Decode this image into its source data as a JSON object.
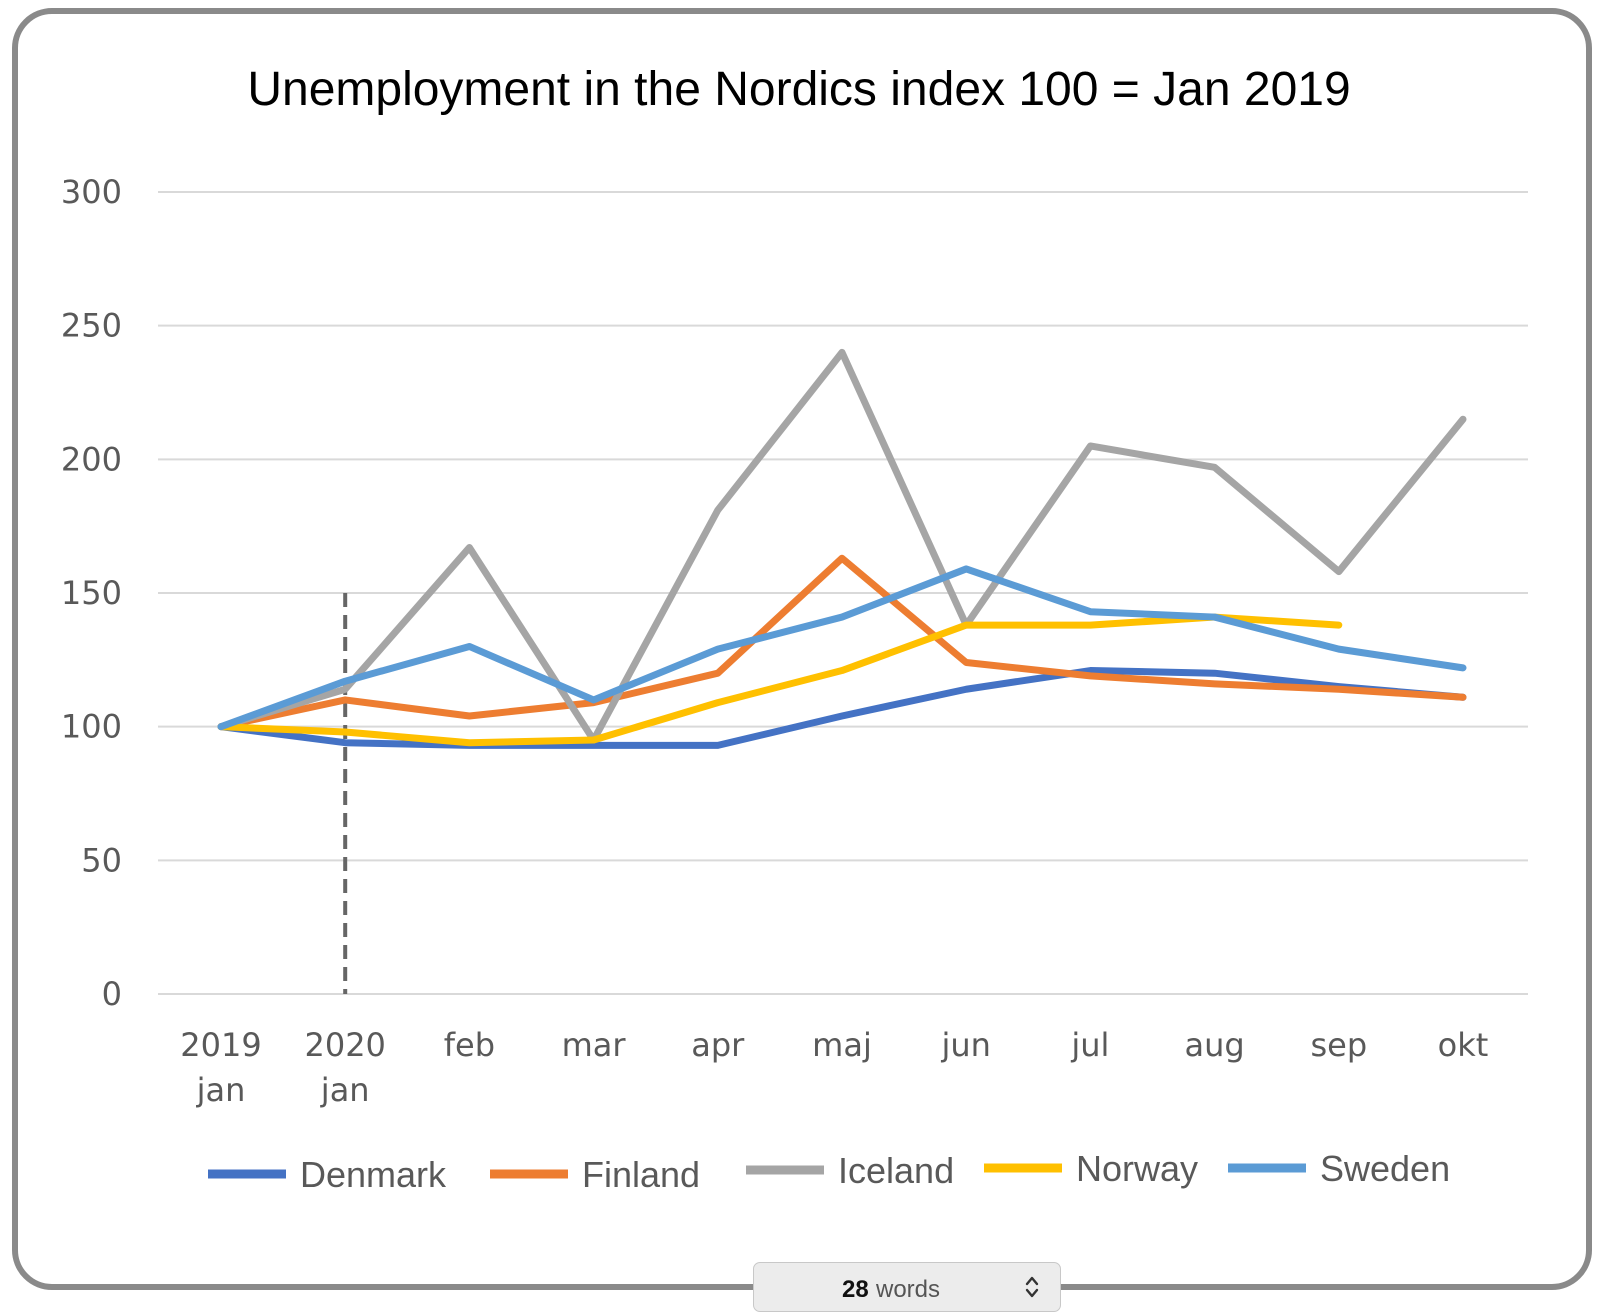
{
  "chart_data": {
    "type": "line",
    "title": "Unemployment in the Nordics index 100 = Jan 2019",
    "categories": [
      [
        "2019",
        "jan"
      ],
      [
        "2020",
        "jan"
      ],
      [
        "feb"
      ],
      [
        "mar"
      ],
      [
        "apr"
      ],
      [
        "maj"
      ],
      [
        "jun"
      ],
      [
        "jul"
      ],
      [
        "aug"
      ],
      [
        "sep"
      ],
      [
        "okt"
      ]
    ],
    "ylim": [
      0,
      300
    ],
    "yticks": [
      0,
      50,
      100,
      150,
      200,
      250,
      300
    ],
    "grid": true,
    "legend_position": "bottom",
    "reference_line": {
      "category_index": 1,
      "y_to": 150,
      "style": "dashed",
      "color": "#666666"
    },
    "series": [
      {
        "name": "Denmark",
        "color": "#4472C4",
        "values": [
          100,
          94,
          93,
          93,
          93,
          104,
          114,
          121,
          120,
          115,
          111
        ]
      },
      {
        "name": "Finland",
        "color": "#ED7D31",
        "values": [
          100,
          110,
          104,
          109,
          120,
          163,
          124,
          119,
          116,
          114,
          111
        ]
      },
      {
        "name": "Iceland",
        "color": "#A5A5A5",
        "values": [
          100,
          114,
          167,
          95,
          181,
          240,
          138,
          205,
          197,
          158,
          215
        ]
      },
      {
        "name": "Norway",
        "color": "#FFC000",
        "values": [
          100,
          98,
          94,
          95,
          109,
          121,
          138,
          138,
          141,
          138,
          null
        ]
      },
      {
        "name": "Sweden",
        "color": "#5B9BD5",
        "values": [
          100,
          117,
          130,
          110,
          129,
          141,
          159,
          143,
          141,
          129,
          122
        ]
      }
    ]
  },
  "footer": {
    "word_count": "28",
    "word_unit": "words"
  }
}
